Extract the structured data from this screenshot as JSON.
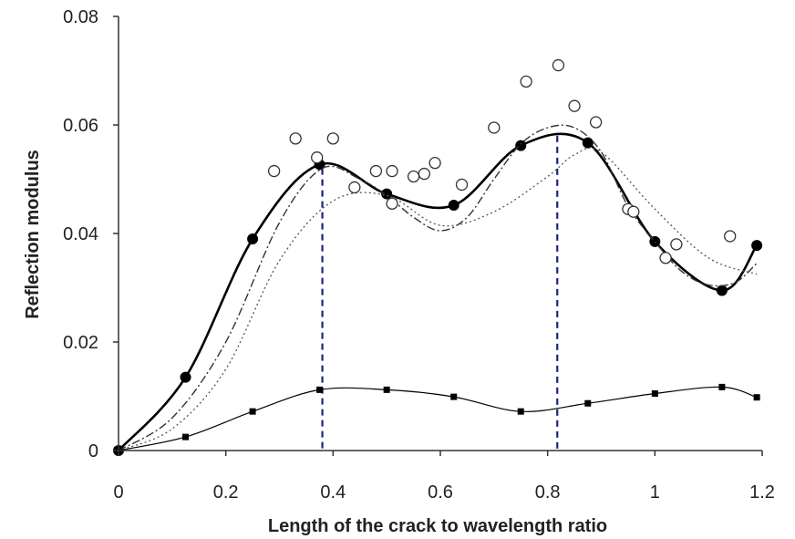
{
  "chart_data": {
    "type": "scatter",
    "title": "",
    "xlabel": "Length of the crack to wavelength ratio",
    "ylabel": "Reflection modulus",
    "xlim": [
      0,
      1.2
    ],
    "ylim": [
      0,
      0.08
    ],
    "xticks": [
      0,
      0.2,
      0.4,
      0.6,
      0.8,
      1.0,
      1.2
    ],
    "xtick_labels": [
      "0",
      "0.2",
      "0.4",
      "0.6",
      "0.8",
      "1",
      "1.2"
    ],
    "yticks": [
      0,
      0.02,
      0.04,
      0.06,
      0.08
    ],
    "ytick_labels": [
      "0",
      "0.02",
      "0.04",
      "0.06",
      "0.08"
    ],
    "grid": false,
    "legend": "none",
    "series": [
      {
        "style": "solid-thick-filled-circles",
        "color": "#000000",
        "x": [
          0,
          0.125,
          0.25,
          0.375,
          0.5,
          0.625,
          0.75,
          0.875,
          1.0,
          1.125,
          1.19
        ],
        "y": [
          0,
          0.0135,
          0.039,
          0.0527,
          0.0473,
          0.0452,
          0.0562,
          0.0567,
          0.0385,
          0.0295,
          0.0378
        ]
      },
      {
        "style": "dash-dot-line",
        "color": "#333333",
        "x": [
          0,
          0.1,
          0.2,
          0.3,
          0.38,
          0.45,
          0.5,
          0.55,
          0.6,
          0.65,
          0.7,
          0.75,
          0.8,
          0.85,
          0.9,
          0.95,
          1.0,
          1.05,
          1.1,
          1.15,
          1.19
        ],
        "y": [
          0,
          0.006,
          0.02,
          0.042,
          0.052,
          0.05,
          0.047,
          0.043,
          0.0405,
          0.043,
          0.05,
          0.0565,
          0.0595,
          0.0595,
          0.055,
          0.045,
          0.0385,
          0.033,
          0.0305,
          0.031,
          0.0345
        ]
      },
      {
        "style": "dotted-line",
        "color": "#555555",
        "x": [
          0,
          0.1,
          0.2,
          0.3,
          0.4,
          0.5,
          0.6,
          0.7,
          0.8,
          0.85,
          0.9,
          1.0,
          1.1,
          1.19
        ],
        "y": [
          0,
          0.004,
          0.015,
          0.035,
          0.046,
          0.047,
          0.0415,
          0.044,
          0.0505,
          0.0545,
          0.055,
          0.0445,
          0.0355,
          0.0325
        ]
      },
      {
        "style": "open-circles",
        "color": "#333333",
        "x": [
          0.29,
          0.33,
          0.37,
          0.4,
          0.44,
          0.48,
          0.51,
          0.51,
          0.55,
          0.57,
          0.59,
          0.64,
          0.7,
          0.76,
          0.82,
          0.85,
          0.89,
          0.95,
          0.96,
          1.02,
          1.04,
          1.14
        ],
        "y": [
          0.0515,
          0.0575,
          0.054,
          0.0575,
          0.0485,
          0.0515,
          0.0515,
          0.0455,
          0.0505,
          0.051,
          0.053,
          0.049,
          0.0595,
          0.068,
          0.071,
          0.0635,
          0.0605,
          0.0445,
          0.044,
          0.0355,
          0.038,
          0.0395
        ]
      },
      {
        "style": "thin-line-filled-squares",
        "color": "#000000",
        "x": [
          0,
          0.125,
          0.25,
          0.375,
          0.5,
          0.625,
          0.75,
          0.875,
          1.0,
          1.125,
          1.19
        ],
        "y": [
          0,
          0.0025,
          0.0072,
          0.0112,
          0.0112,
          0.0099,
          0.0072,
          0.0087,
          0.0105,
          0.0117,
          0.0098
        ]
      }
    ],
    "reference_lines": [
      {
        "orientation": "vertical",
        "x": 0.38,
        "y_top": 0.052,
        "style": "dashed",
        "color": "#1a237e"
      },
      {
        "orientation": "vertical",
        "x": 0.818,
        "y_top": 0.058,
        "style": "dashed",
        "color": "#1a237e"
      }
    ]
  }
}
